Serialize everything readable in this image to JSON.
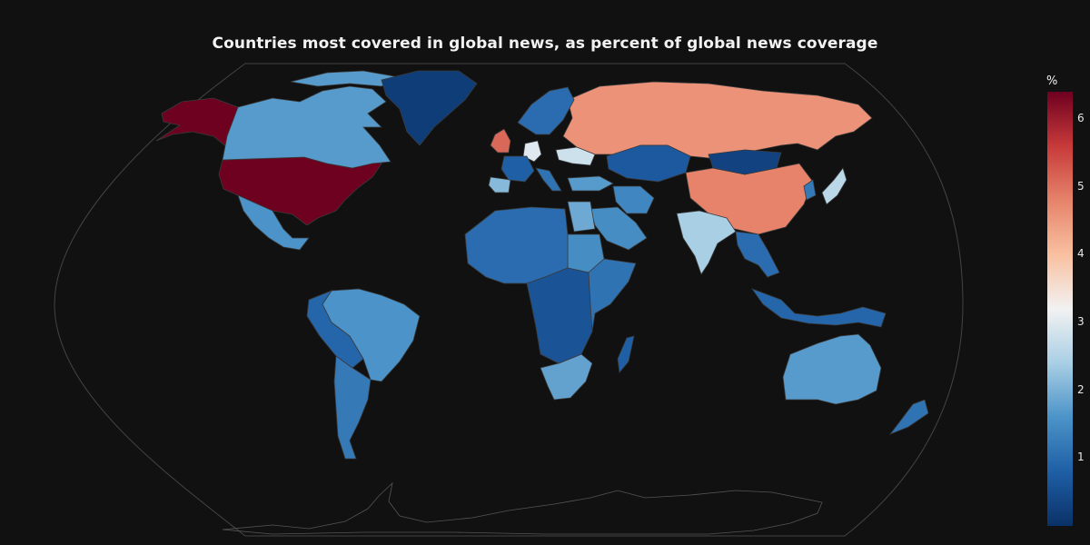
{
  "title": "Countries most covered in global news, as percent of global news coverage",
  "colorbar": {
    "title": "%",
    "min": 0,
    "max": 6.4,
    "ticks": [
      "1",
      "2",
      "3",
      "4",
      "5",
      "6"
    ],
    "colors": [
      "#0a3168",
      "#1f5fa6",
      "#4b93c8",
      "#a9cfe5",
      "#f2f2f2",
      "#f9c0a0",
      "#e6836a",
      "#c73a3a",
      "#6e0020"
    ]
  },
  "countries": [
    {
      "name": "United States",
      "value": 6.4
    },
    {
      "name": "Alaska (US)",
      "value": 6.4
    },
    {
      "name": "Russia",
      "value": 4.6
    },
    {
      "name": "China",
      "value": 4.8
    },
    {
      "name": "United Kingdom",
      "value": 5.1
    },
    {
      "name": "Germany",
      "value": 3.0
    },
    {
      "name": "Ukraine",
      "value": 2.8
    },
    {
      "name": "India",
      "value": 2.4
    },
    {
      "name": "Japan",
      "value": 2.6
    },
    {
      "name": "Canada",
      "value": 1.7
    },
    {
      "name": "Greenland",
      "value": 0.2
    },
    {
      "name": "Mexico",
      "value": 1.6
    },
    {
      "name": "Brazil",
      "value": 1.6
    },
    {
      "name": "Argentina",
      "value": 1.2
    },
    {
      "name": "Peru / Bolivia",
      "value": 0.9
    },
    {
      "name": "Australia",
      "value": 1.7
    },
    {
      "name": "South Africa",
      "value": 1.8
    },
    {
      "name": "Saudi Arabia",
      "value": 1.5
    },
    {
      "name": "Iran",
      "value": 1.4
    },
    {
      "name": "Egypt",
      "value": 1.9
    },
    {
      "name": "Sudan",
      "value": 1.5
    },
    {
      "name": "Nigeria / West Africa",
      "value": 1.0
    },
    {
      "name": "Central Africa",
      "value": 0.6
    },
    {
      "name": "East Africa",
      "value": 1.1
    },
    {
      "name": "Turkey",
      "value": 1.7
    },
    {
      "name": "Spain",
      "value": 2.1
    },
    {
      "name": "France",
      "value": 0.8
    },
    {
      "name": "Italy",
      "value": 1.1
    },
    {
      "name": "Scandinavia",
      "value": 1.0
    },
    {
      "name": "Kazakhstan",
      "value": 0.7
    },
    {
      "name": "Mongolia",
      "value": 0.3
    },
    {
      "name": "Southeast Asia",
      "value": 1.0
    },
    {
      "name": "Indonesia",
      "value": 0.9
    },
    {
      "name": "New Zealand",
      "value": 1.1
    },
    {
      "name": "Madagascar",
      "value": 0.8
    },
    {
      "name": "Korea",
      "value": 1.2
    }
  ]
}
